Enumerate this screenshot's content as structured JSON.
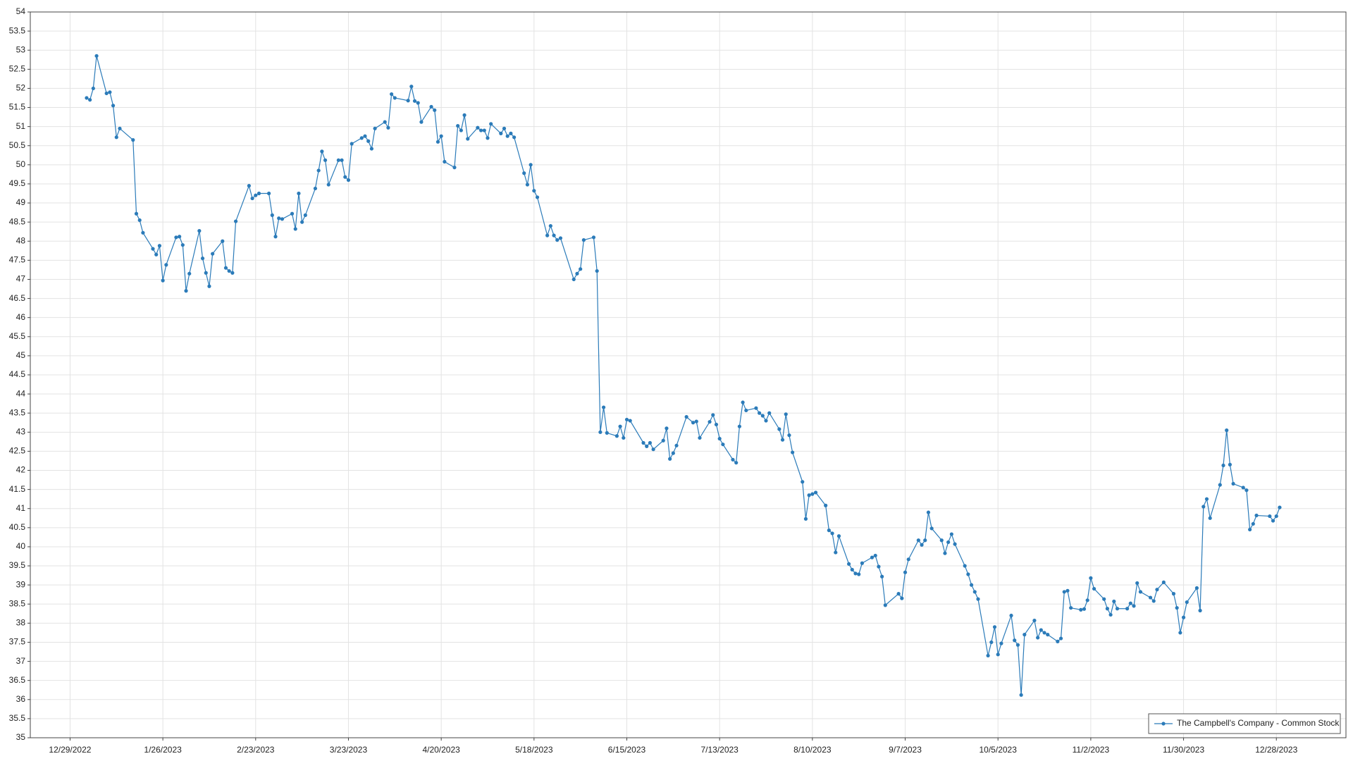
{
  "chart_data": {
    "type": "line",
    "x": [
      "2023-01-03",
      "2023-01-04",
      "2023-01-05",
      "2023-01-06",
      "2023-01-09",
      "2023-01-10",
      "2023-01-11",
      "2023-01-12",
      "2023-01-13",
      "2023-01-17",
      "2023-01-18",
      "2023-01-19",
      "2023-01-20",
      "2023-01-23",
      "2023-01-24",
      "2023-01-25",
      "2023-01-26",
      "2023-01-27",
      "2023-01-30",
      "2023-01-31",
      "2023-02-01",
      "2023-02-02",
      "2023-02-03",
      "2023-02-06",
      "2023-02-07",
      "2023-02-08",
      "2023-02-09",
      "2023-02-10",
      "2023-02-13",
      "2023-02-14",
      "2023-02-15",
      "2023-02-16",
      "2023-02-17",
      "2023-02-21",
      "2023-02-22",
      "2023-02-23",
      "2023-02-24",
      "2023-02-27",
      "2023-02-28",
      "2023-03-01",
      "2023-03-02",
      "2023-03-03",
      "2023-03-06",
      "2023-03-07",
      "2023-03-08",
      "2023-03-09",
      "2023-03-10",
      "2023-03-13",
      "2023-03-14",
      "2023-03-15",
      "2023-03-16",
      "2023-03-17",
      "2023-03-20",
      "2023-03-21",
      "2023-03-22",
      "2023-03-23",
      "2023-03-24",
      "2023-03-27",
      "2023-03-28",
      "2023-03-29",
      "2023-03-30",
      "2023-03-31",
      "2023-04-03",
      "2023-04-04",
      "2023-04-05",
      "2023-04-06",
      "2023-04-10",
      "2023-04-11",
      "2023-04-12",
      "2023-04-13",
      "2023-04-14",
      "2023-04-17",
      "2023-04-18",
      "2023-04-19",
      "2023-04-20",
      "2023-04-21",
      "2023-04-24",
      "2023-04-25",
      "2023-04-26",
      "2023-04-27",
      "2023-04-28",
      "2023-05-01",
      "2023-05-02",
      "2023-05-03",
      "2023-05-04",
      "2023-05-05",
      "2023-05-08",
      "2023-05-09",
      "2023-05-10",
      "2023-05-11",
      "2023-05-12",
      "2023-05-15",
      "2023-05-16",
      "2023-05-17",
      "2023-05-18",
      "2023-05-19",
      "2023-05-22",
      "2023-05-23",
      "2023-05-24",
      "2023-05-25",
      "2023-05-26",
      "2023-05-30",
      "2023-05-31",
      "2023-06-01",
      "2023-06-02",
      "2023-06-05",
      "2023-06-06",
      "2023-06-07",
      "2023-06-08",
      "2023-06-09",
      "2023-06-12",
      "2023-06-13",
      "2023-06-14",
      "2023-06-15",
      "2023-06-16",
      "2023-06-20",
      "2023-06-21",
      "2023-06-22",
      "2023-06-23",
      "2023-06-26",
      "2023-06-27",
      "2023-06-28",
      "2023-06-29",
      "2023-06-30",
      "2023-07-03",
      "2023-07-05",
      "2023-07-06",
      "2023-07-07",
      "2023-07-10",
      "2023-07-11",
      "2023-07-12",
      "2023-07-13",
      "2023-07-14",
      "2023-07-17",
      "2023-07-18",
      "2023-07-19",
      "2023-07-20",
      "2023-07-21",
      "2023-07-24",
      "2023-07-25",
      "2023-07-26",
      "2023-07-27",
      "2023-07-28",
      "2023-07-31",
      "2023-08-01",
      "2023-08-02",
      "2023-08-03",
      "2023-08-04",
      "2023-08-07",
      "2023-08-08",
      "2023-08-09",
      "2023-08-10",
      "2023-08-11",
      "2023-08-14",
      "2023-08-15",
      "2023-08-16",
      "2023-08-17",
      "2023-08-18",
      "2023-08-21",
      "2023-08-22",
      "2023-08-23",
      "2023-08-24",
      "2023-08-25",
      "2023-08-28",
      "2023-08-29",
      "2023-08-30",
      "2023-08-31",
      "2023-09-01",
      "2023-09-05",
      "2023-09-06",
      "2023-09-07",
      "2023-09-08",
      "2023-09-11",
      "2023-09-12",
      "2023-09-13",
      "2023-09-14",
      "2023-09-15",
      "2023-09-18",
      "2023-09-19",
      "2023-09-20",
      "2023-09-21",
      "2023-09-22",
      "2023-09-25",
      "2023-09-26",
      "2023-09-27",
      "2023-09-28",
      "2023-09-29",
      "2023-10-02",
      "2023-10-03",
      "2023-10-04",
      "2023-10-05",
      "2023-10-06",
      "2023-10-09",
      "2023-10-10",
      "2023-10-11",
      "2023-10-12",
      "2023-10-13",
      "2023-10-16",
      "2023-10-17",
      "2023-10-18",
      "2023-10-19",
      "2023-10-20",
      "2023-10-23",
      "2023-10-24",
      "2023-10-25",
      "2023-10-26",
      "2023-10-27",
      "2023-10-30",
      "2023-10-31",
      "2023-11-01",
      "2023-11-02",
      "2023-11-03",
      "2023-11-06",
      "2023-11-07",
      "2023-11-08",
      "2023-11-09",
      "2023-11-10",
      "2023-11-13",
      "2023-11-14",
      "2023-11-15",
      "2023-11-16",
      "2023-11-17",
      "2023-11-20",
      "2023-11-21",
      "2023-11-22",
      "2023-11-24",
      "2023-11-27",
      "2023-11-28",
      "2023-11-29",
      "2023-11-30",
      "2023-12-01",
      "2023-12-04",
      "2023-12-05",
      "2023-12-06",
      "2023-12-07",
      "2023-12-08",
      "2023-12-11",
      "2023-12-12",
      "2023-12-13",
      "2023-12-14",
      "2023-12-15",
      "2023-12-18",
      "2023-12-19",
      "2023-12-20",
      "2023-12-21",
      "2023-12-22",
      "2023-12-26",
      "2023-12-27",
      "2023-12-28",
      "2023-12-29"
    ],
    "series": [
      {
        "name": "The Campbell's Company - Common Stock",
        "color": "#2b7bb9",
        "values": [
          51.75,
          51.7,
          52.0,
          52.85,
          51.87,
          51.9,
          51.55,
          50.72,
          50.95,
          50.65,
          48.72,
          48.55,
          48.22,
          47.8,
          47.65,
          47.88,
          46.97,
          47.38,
          48.1,
          48.12,
          47.9,
          46.7,
          47.15,
          48.27,
          47.55,
          47.17,
          46.82,
          47.67,
          48.0,
          47.3,
          47.22,
          47.17,
          48.52,
          49.45,
          49.12,
          49.2,
          49.25,
          49.25,
          48.68,
          48.12,
          48.6,
          48.58,
          48.72,
          48.32,
          49.25,
          48.5,
          48.68,
          49.38,
          49.85,
          50.35,
          50.12,
          49.48,
          50.12,
          50.12,
          49.68,
          49.6,
          50.55,
          50.7,
          50.75,
          50.62,
          50.42,
          50.95,
          51.12,
          50.97,
          51.85,
          51.75,
          51.68,
          52.05,
          51.67,
          51.62,
          51.12,
          51.52,
          51.43,
          50.6,
          50.75,
          50.08,
          49.93,
          51.02,
          50.9,
          51.3,
          50.68,
          50.97,
          50.9,
          50.9,
          50.7,
          51.07,
          50.82,
          50.95,
          50.75,
          50.82,
          50.72,
          49.78,
          49.48,
          50.0,
          49.32,
          49.15,
          48.15,
          48.4,
          48.15,
          48.03,
          48.08,
          47.0,
          47.15,
          47.27,
          48.03,
          48.1,
          47.22,
          43.0,
          43.65,
          42.98,
          42.9,
          43.15,
          42.85,
          43.33,
          43.3,
          42.72,
          42.63,
          42.72,
          42.55,
          42.78,
          43.1,
          42.3,
          42.45,
          42.65,
          43.4,
          43.25,
          43.28,
          42.85,
          43.27,
          43.45,
          43.2,
          42.83,
          42.68,
          42.28,
          42.2,
          43.15,
          43.78,
          43.57,
          43.63,
          43.5,
          43.43,
          43.3,
          43.5,
          43.08,
          42.8,
          43.47,
          42.92,
          42.47,
          41.7,
          40.73,
          41.35,
          41.38,
          41.42,
          41.08,
          40.43,
          40.35,
          39.85,
          40.28,
          39.55,
          39.4,
          39.3,
          39.28,
          39.57,
          39.72,
          39.77,
          39.48,
          39.22,
          38.47,
          38.77,
          38.65,
          39.33,
          39.67,
          40.17,
          40.05,
          40.17,
          40.9,
          40.48,
          40.17,
          39.83,
          40.12,
          40.33,
          40.07,
          39.5,
          39.28,
          39.0,
          38.82,
          38.63,
          37.15,
          37.5,
          37.9,
          37.18,
          37.47,
          38.2,
          37.55,
          37.43,
          36.12,
          37.7,
          38.07,
          37.62,
          37.82,
          37.75,
          37.7,
          37.52,
          37.6,
          38.82,
          38.85,
          38.4,
          38.35,
          38.37,
          38.6,
          39.18,
          38.9,
          38.63,
          38.38,
          38.22,
          38.57,
          38.38,
          38.38,
          38.52,
          38.45,
          39.05,
          38.82,
          38.67,
          38.58,
          38.88,
          39.07,
          38.77,
          38.4,
          37.75,
          38.15,
          38.55,
          38.92,
          38.33,
          41.05,
          41.25,
          40.75,
          41.62,
          42.13,
          43.05,
          42.15,
          41.65,
          41.55,
          41.48,
          40.45,
          40.6,
          40.82,
          40.8,
          40.68,
          40.8,
          41.03
        ]
      }
    ],
    "xlim": [
      "2022-12-17",
      "2024-01-18"
    ],
    "xticks": [
      {
        "value": "2022-12-29",
        "label": "12/29/2022"
      },
      {
        "value": "2023-01-26",
        "label": "1/26/2023"
      },
      {
        "value": "2023-02-23",
        "label": "2/23/2023"
      },
      {
        "value": "2023-03-23",
        "label": "3/23/2023"
      },
      {
        "value": "2023-04-20",
        "label": "4/20/2023"
      },
      {
        "value": "2023-05-18",
        "label": "5/18/2023"
      },
      {
        "value": "2023-06-15",
        "label": "6/15/2023"
      },
      {
        "value": "2023-07-13",
        "label": "7/13/2023"
      },
      {
        "value": "2023-08-10",
        "label": "8/10/2023"
      },
      {
        "value": "2023-09-07",
        "label": "9/7/2023"
      },
      {
        "value": "2023-10-05",
        "label": "10/5/2023"
      },
      {
        "value": "2023-11-02",
        "label": "11/2/2023"
      },
      {
        "value": "2023-11-30",
        "label": "11/30/2023"
      },
      {
        "value": "2023-12-28",
        "label": "12/28/2023"
      }
    ],
    "ylim": [
      35,
      54
    ],
    "yticks": [
      35,
      35.5,
      36,
      36.5,
      37,
      37.5,
      38,
      38.5,
      39,
      39.5,
      40,
      40.5,
      41,
      41.5,
      42,
      42.5,
      43,
      43.5,
      44,
      44.5,
      45,
      45.5,
      46,
      46.5,
      47,
      47.5,
      48,
      48.5,
      49,
      49.5,
      50,
      50.5,
      51,
      51.5,
      52,
      52.5,
      53,
      53.5,
      54
    ],
    "grid": true,
    "legend": "lower right"
  }
}
